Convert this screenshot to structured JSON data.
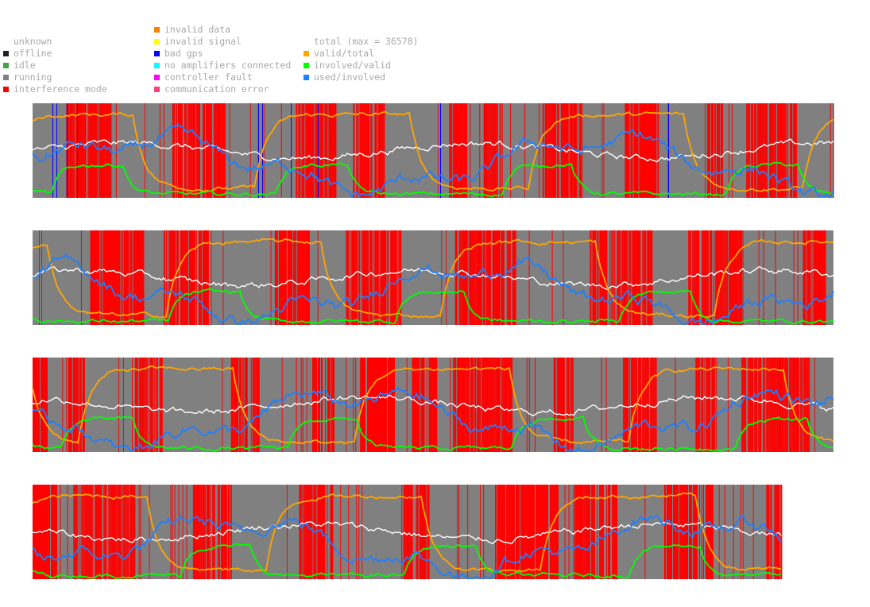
{
  "legend": {
    "col1": [
      {
        "label": "unknown",
        "color": null
      },
      {
        "label": "offline",
        "color": "#222222"
      },
      {
        "label": "idle",
        "color": "#3fa33f"
      },
      {
        "label": "running",
        "color": "#808080"
      },
      {
        "label": "interference mode",
        "color": "#ff0000"
      }
    ],
    "col2": [
      {
        "label": "invalid data",
        "color": "#ff7f00"
      },
      {
        "label": "invalid signal",
        "color": "#ffff00"
      },
      {
        "label": "bad gps",
        "color": "#0000ff"
      },
      {
        "label": "no amplifiers connected",
        "color": "#00ffff"
      },
      {
        "label": "controller fault",
        "color": "#ff00ff"
      },
      {
        "label": "communication error",
        "color": "#ff4080"
      }
    ],
    "col3": [
      {
        "label": "total (max = 36578)",
        "color": null
      },
      {
        "label": "valid/total",
        "color": "#ffa500"
      },
      {
        "label": "involved/valid",
        "color": "#00ff00"
      },
      {
        "label": "used/involved",
        "color": "#1e7fff"
      }
    ]
  },
  "chart_data": {
    "type": "line",
    "title": "",
    "panels": 4,
    "background_state": "running",
    "interference_fraction_per_panel": [
      0.55,
      0.5,
      0.45,
      0.45
    ],
    "ylim": [
      0,
      1
    ],
    "series": [
      {
        "name": "total (max = 36578)",
        "color": "#ffffff",
        "typical_level": 0.5
      },
      {
        "name": "valid/total",
        "color": "#ffa500",
        "typical_level": 0.8
      },
      {
        "name": "involved/valid",
        "color": "#00ff00",
        "typical_level": 0.1
      },
      {
        "name": "used/involved",
        "color": "#1e7fff",
        "typical_level": 0.45
      }
    ]
  }
}
